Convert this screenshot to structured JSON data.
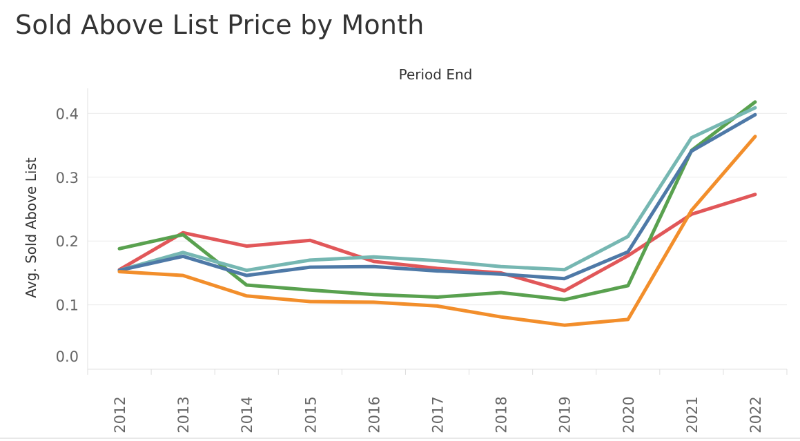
{
  "page": {
    "title": "Sold Above List Price by Month"
  },
  "chart_data": {
    "type": "line",
    "title": "Sold Above List Price by Month",
    "header": "Period End",
    "xlabel": "",
    "ylabel": "Avg. Sold Above List",
    "x": [
      "2012",
      "2013",
      "2014",
      "2015",
      "2016",
      "2017",
      "2018",
      "2019",
      "2020",
      "2021",
      "2022"
    ],
    "yticks": [
      "0.0",
      "0.1",
      "0.2",
      "0.3",
      "0.4"
    ],
    "ylim": [
      0,
      0.42
    ],
    "grid": true,
    "legend": "none",
    "series": [
      {
        "color": "#e15759",
        "values": [
          0.155,
          0.213,
          0.192,
          0.201,
          0.168,
          0.157,
          0.15,
          0.122,
          0.177,
          0.242,
          0.273
        ]
      },
      {
        "color": "#59a14f",
        "values": [
          0.188,
          0.21,
          0.131,
          0.123,
          0.116,
          0.112,
          0.119,
          0.108,
          0.13,
          0.342,
          0.418
        ]
      },
      {
        "color": "#76b7b2",
        "values": [
          0.154,
          0.182,
          0.154,
          0.17,
          0.175,
          0.169,
          0.16,
          0.155,
          0.207,
          0.362,
          0.409
        ]
      },
      {
        "color": "#4e79a7",
        "values": [
          0.154,
          0.176,
          0.146,
          0.159,
          0.16,
          0.153,
          0.148,
          0.141,
          0.183,
          0.341,
          0.398
        ]
      },
      {
        "color": "#f28e2b",
        "values": [
          0.152,
          0.146,
          0.114,
          0.105,
          0.104,
          0.098,
          0.081,
          0.068,
          0.077,
          0.248,
          0.364
        ]
      }
    ]
  }
}
